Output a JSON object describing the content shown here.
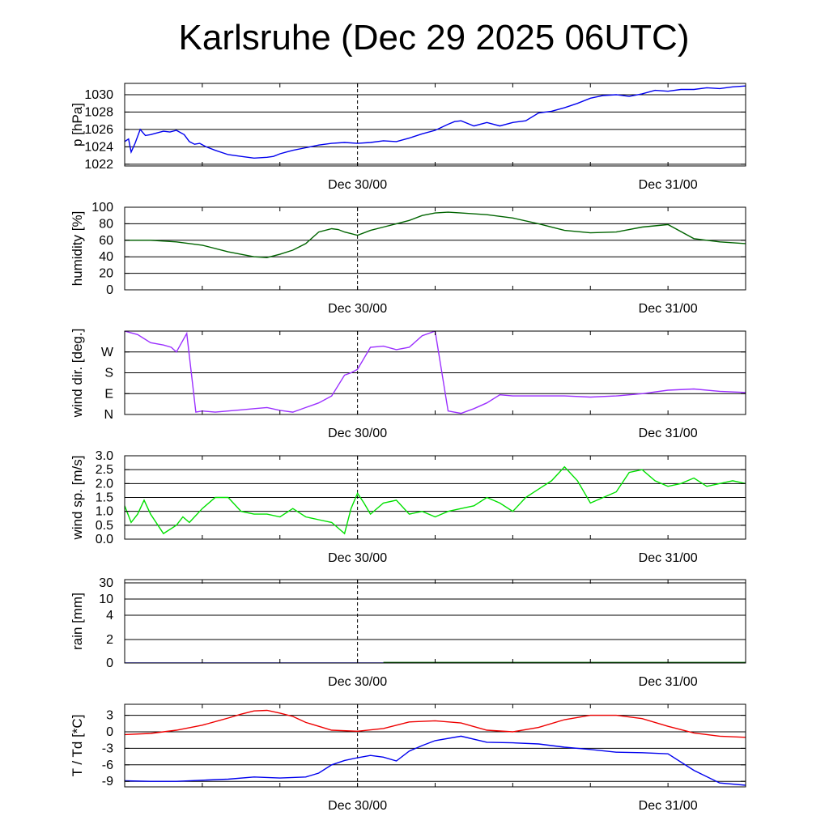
{
  "title": "Karlsruhe (Dec 29 2025 06UTC)",
  "chart_data": [
    {
      "type": "line",
      "ylabel": "p [hPa]",
      "ylim": [
        1021.8,
        1031.3
      ],
      "yticks": [
        1022,
        1024,
        1026,
        1028,
        1030
      ],
      "ytick_labels": [
        "1022",
        "1024",
        "1026",
        "1028",
        "1030"
      ],
      "xlim": [
        6,
        54
      ],
      "x_tick_labels": [
        {
          "x": 24,
          "label": "Dec 30/00"
        },
        {
          "x": 48,
          "label": "Dec 31/00"
        }
      ],
      "series": [
        {
          "color": "#0000ee",
          "x": [
            6,
            6.3,
            6.5,
            6.8,
            7.2,
            7.6,
            8,
            8.5,
            9,
            9.5,
            10,
            10.6,
            11,
            11.4,
            11.8,
            12.3,
            13,
            14,
            15,
            16,
            17,
            17.5,
            18,
            18.5,
            19,
            20,
            21,
            22,
            23,
            24,
            25,
            26,
            27,
            28,
            29,
            30,
            31,
            31.5,
            32,
            33,
            34,
            35,
            36,
            37,
            38,
            39,
            40,
            41,
            42,
            43,
            44,
            45,
            46,
            47,
            48,
            49,
            50,
            51,
            52,
            53,
            54
          ],
          "y": [
            1024.6,
            1024.9,
            1023.4,
            1024.4,
            1026.0,
            1025.3,
            1025.4,
            1025.6,
            1025.8,
            1025.7,
            1025.9,
            1025.4,
            1024.6,
            1024.3,
            1024.4,
            1024.0,
            1023.6,
            1023.1,
            1022.9,
            1022.7,
            1022.8,
            1022.9,
            1023.2,
            1023.4,
            1023.6,
            1023.9,
            1024.2,
            1024.4,
            1024.5,
            1024.4,
            1024.5,
            1024.7,
            1024.6,
            1025.0,
            1025.5,
            1025.9,
            1026.6,
            1026.9,
            1027.0,
            1026.4,
            1026.8,
            1026.4,
            1026.8,
            1027.0,
            1027.9,
            1028.1,
            1028.5,
            1029.0,
            1029.6,
            1029.9,
            1030.0,
            1029.8,
            1030.1,
            1030.5,
            1030.4,
            1030.6,
            1030.6,
            1030.8,
            1030.7,
            1030.9,
            1031.0
          ]
        }
      ]
    },
    {
      "type": "line",
      "ylabel": "humidity [%]",
      "ylim": [
        0,
        100
      ],
      "yticks": [
        0,
        20,
        40,
        60,
        80,
        100
      ],
      "ytick_labels": [
        "0",
        "20",
        "40",
        "60",
        "80",
        "100"
      ],
      "xlim": [
        6,
        54
      ],
      "x_tick_labels": [
        {
          "x": 24,
          "label": "Dec 30/00"
        },
        {
          "x": 48,
          "label": "Dec 31/00"
        }
      ],
      "series": [
        {
          "color": "#006400",
          "x": [
            6,
            8,
            10,
            12,
            14,
            16,
            17,
            18,
            19,
            20,
            21,
            22,
            22.5,
            23,
            23.5,
            24,
            25,
            26,
            27,
            28,
            29,
            30,
            31,
            32,
            34,
            36,
            38,
            40,
            42,
            44,
            46,
            48,
            50,
            52,
            54
          ],
          "y": [
            60,
            60,
            58,
            54,
            46,
            40,
            39,
            43,
            48,
            56,
            70,
            74,
            73,
            70,
            68,
            66,
            72,
            76,
            80,
            84,
            90,
            93,
            94,
            93,
            91,
            87,
            80,
            72,
            69,
            70,
            76,
            79,
            62,
            58,
            56
          ]
        }
      ]
    },
    {
      "type": "scatter",
      "ylabel": "wind dir. [deg.]",
      "ylim": [
        0,
        360
      ],
      "yticks": [
        0,
        90,
        180,
        270
      ],
      "ytick_labels": [
        "N",
        "E",
        "S",
        "W"
      ],
      "xlim": [
        6,
        54
      ],
      "x_tick_labels": [
        {
          "x": 24,
          "label": "Dec 30/00"
        },
        {
          "x": 48,
          "label": "Dec 31/00"
        }
      ],
      "series": [
        {
          "color": "#9b30ff",
          "x": [
            6,
            7,
            8,
            9,
            9.6,
            10,
            10.4,
            10.8,
            11.5,
            12,
            13,
            14,
            15,
            16,
            17,
            18,
            19,
            20,
            21,
            22,
            23,
            23.5,
            24,
            25,
            26,
            27,
            28,
            29,
            30,
            31,
            32,
            33,
            34,
            35,
            36,
            38,
            40,
            42,
            44,
            46,
            48,
            50,
            52,
            54
          ],
          "y": [
            360,
            345,
            310,
            300,
            290,
            270,
            310,
            350,
            10,
            15,
            10,
            15,
            20,
            25,
            30,
            18,
            10,
            30,
            50,
            80,
            170,
            180,
            195,
            290,
            295,
            280,
            290,
            340,
            360,
            15,
            5,
            25,
            50,
            85,
            80,
            80,
            80,
            75,
            80,
            90,
            105,
            110,
            100,
            95
          ]
        }
      ]
    },
    {
      "type": "line",
      "ylabel": "wind sp. [m/s]",
      "ylim": [
        0,
        3
      ],
      "yticks": [
        0,
        0.5,
        1,
        1.5,
        2,
        2.5,
        3
      ],
      "ytick_labels": [
        "0.0",
        "0.5",
        "1.0",
        "1.5",
        "2.0",
        "2.5",
        "3.0"
      ],
      "xlim": [
        6,
        54
      ],
      "x_tick_labels": [
        {
          "x": 24,
          "label": "Dec 30/00"
        },
        {
          "x": 48,
          "label": "Dec 31/00"
        }
      ],
      "series": [
        {
          "color": "#00e000",
          "x": [
            6,
            6.5,
            7,
            7.5,
            8,
            9,
            10,
            10.5,
            11,
            12,
            13,
            14,
            15,
            16,
            17,
            18,
            19,
            20,
            21,
            22,
            23,
            23.5,
            24,
            24.5,
            25,
            26,
            27,
            28,
            29,
            30,
            31,
            32,
            33,
            34,
            35,
            36,
            37,
            38,
            39,
            40,
            41,
            42,
            43,
            44,
            45,
            46,
            47,
            48,
            49,
            50,
            51,
            52,
            53,
            54
          ],
          "y": [
            1.2,
            0.6,
            0.9,
            1.4,
            0.9,
            0.2,
            0.5,
            0.8,
            0.6,
            1.1,
            1.5,
            1.5,
            1.0,
            0.9,
            0.9,
            0.8,
            1.1,
            0.8,
            0.7,
            0.6,
            0.2,
            1.1,
            1.65,
            1.3,
            0.9,
            1.3,
            1.4,
            0.9,
            1.0,
            0.8,
            1.0,
            1.1,
            1.2,
            1.5,
            1.3,
            1.0,
            1.5,
            1.8,
            2.1,
            2.6,
            2.1,
            1.3,
            1.5,
            1.7,
            2.4,
            2.5,
            2.1,
            1.9,
            2.0,
            2.2,
            1.9,
            2.0,
            2.1,
            2.0
          ]
        }
      ]
    },
    {
      "type": "line",
      "ylabel": "rain [mm]",
      "ylim": [
        0,
        35
      ],
      "yticks": [
        0,
        2,
        4,
        10,
        30
      ],
      "ytick_labels": [
        "0",
        "2",
        "4",
        "10",
        "30"
      ],
      "xlim": [
        6,
        54
      ],
      "x_tick_labels": [
        {
          "x": 24,
          "label": "Dec 30/00"
        },
        {
          "x": 48,
          "label": "Dec 31/00"
        }
      ],
      "series": [
        {
          "color": "#0000ee",
          "x": [
            6,
            54
          ],
          "y": [
            0,
            0
          ]
        },
        {
          "color": "#006400",
          "x": [
            26,
            54
          ],
          "y": [
            0.05,
            0.05
          ]
        }
      ]
    },
    {
      "type": "line",
      "ylabel": "T / Td [*C]",
      "ylim": [
        -10,
        5
      ],
      "yticks": [
        -9,
        -6,
        -3,
        0,
        3
      ],
      "ytick_labels": [
        "-9",
        "-6",
        "-3",
        "0",
        "3"
      ],
      "xlim": [
        6,
        54
      ],
      "x_tick_labels": [
        {
          "x": 24,
          "label": "Dec 30/00"
        },
        {
          "x": 48,
          "label": "Dec 31/00"
        }
      ],
      "series": [
        {
          "color": "#ee0000",
          "x": [
            6,
            8,
            10,
            12,
            14,
            15,
            16,
            17,
            18,
            19,
            20,
            21,
            22,
            24,
            26,
            28,
            30,
            32,
            34,
            36,
            38,
            40,
            42,
            44,
            46,
            48,
            50,
            52,
            54
          ],
          "y": [
            -0.5,
            -0.3,
            0.3,
            1.2,
            2.5,
            3.2,
            3.8,
            3.9,
            3.4,
            2.8,
            1.7,
            1.0,
            0.3,
            0.1,
            0.6,
            1.8,
            2.0,
            1.6,
            0.3,
            0.0,
            0.8,
            2.2,
            3.0,
            3.0,
            2.4,
            1.0,
            -0.2,
            -0.8,
            -1.0
          ]
        },
        {
          "color": "#0000ee",
          "x": [
            6,
            8,
            10,
            12,
            14,
            16,
            18,
            20,
            21,
            22,
            23,
            24,
            25,
            26,
            27,
            28,
            29,
            30,
            32,
            34,
            36,
            38,
            40,
            42,
            44,
            46,
            48,
            50,
            52,
            54
          ],
          "y": [
            -8.9,
            -9.0,
            -9.0,
            -8.8,
            -8.6,
            -8.2,
            -8.4,
            -8.2,
            -7.5,
            -6.0,
            -5.2,
            -4.7,
            -4.3,
            -4.6,
            -5.3,
            -3.5,
            -2.5,
            -1.6,
            -0.8,
            -1.9,
            -2.0,
            -2.2,
            -2.8,
            -3.2,
            -3.7,
            -3.8,
            -4.0,
            -7.0,
            -9.3,
            -9.7
          ]
        }
      ]
    }
  ]
}
